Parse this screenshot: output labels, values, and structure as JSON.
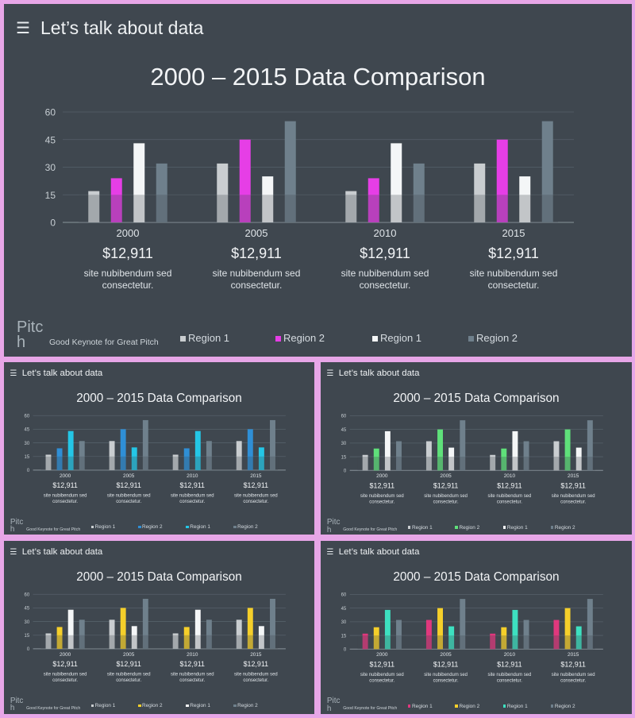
{
  "slide": {
    "menu_icon": "hamburger-menu-icon",
    "heading": "Let’s talk about data",
    "title": "2000 – 2015 Data Comparison",
    "slogan": "Good Keynote for Great Pitch",
    "pitch_line1": "Pitc",
    "pitch_line2": "h"
  },
  "stats": [
    {
      "year": "2000",
      "value": "$12,911",
      "text1": "site nubibendum sed",
      "text2": "consectetur."
    },
    {
      "year": "2005",
      "value": "$12,911",
      "text1": "site nubibendum sed",
      "text2": "consectetur."
    },
    {
      "year": "2010",
      "value": "$12,911",
      "text1": "site nubibendum sed",
      "text2": "consectetur."
    },
    {
      "year": "2015",
      "value": "$12,911",
      "text1": "site nubibendum sed",
      "text2": "consectetur."
    }
  ],
  "themes": [
    {
      "name": "magenta",
      "colors": [
        "#c9cdd0",
        "#e63ee6",
        "#f4f6f7",
        "#6f808c"
      ],
      "legend": [
        "Region 1",
        "Region 2",
        "Region 1",
        "Region 2"
      ]
    },
    {
      "name": "blue",
      "colors": [
        "#c9cdd0",
        "#2f8fd6",
        "#24c6e6",
        "#6f808c"
      ],
      "legend": [
        "Region 1",
        "Region 2",
        "Region 1",
        "Region 2"
      ]
    },
    {
      "name": "green",
      "colors": [
        "#c9cdd0",
        "#5fe07a",
        "#f4f6f7",
        "#6f808c"
      ],
      "legend": [
        "Region 1",
        "Region 2",
        "Region 1",
        "Region 2"
      ]
    },
    {
      "name": "yellow",
      "colors": [
        "#c9cdd0",
        "#f5cf2a",
        "#f4f6f7",
        "#6f808c"
      ],
      "legend": [
        "Region 1",
        "Region 2",
        "Region 1",
        "Region 2"
      ]
    },
    {
      "name": "pink-teal",
      "colors": [
        "#e0387d",
        "#f5cf2a",
        "#3de0c0",
        "#6f808c"
      ],
      "legend": [
        "Region 1",
        "Region 2",
        "Region 1",
        "Region 2"
      ]
    }
  ],
  "chart_data": {
    "type": "bar",
    "title": "2000 – 2015 Data Comparison",
    "categories": [
      "2000",
      "2005",
      "2010",
      "2015"
    ],
    "ylim": [
      0,
      60
    ],
    "yticks": [
      0,
      15,
      30,
      45,
      60
    ],
    "grid": true,
    "series": [
      {
        "name": "Region 1",
        "values": [
          17,
          32,
          17,
          32
        ]
      },
      {
        "name": "Region 2",
        "values": [
          24,
          45,
          24,
          45
        ]
      },
      {
        "name": "Region 1",
        "values": [
          43,
          25,
          43,
          25
        ]
      },
      {
        "name": "Region 2",
        "values": [
          32,
          55,
          32,
          55
        ]
      }
    ]
  }
}
